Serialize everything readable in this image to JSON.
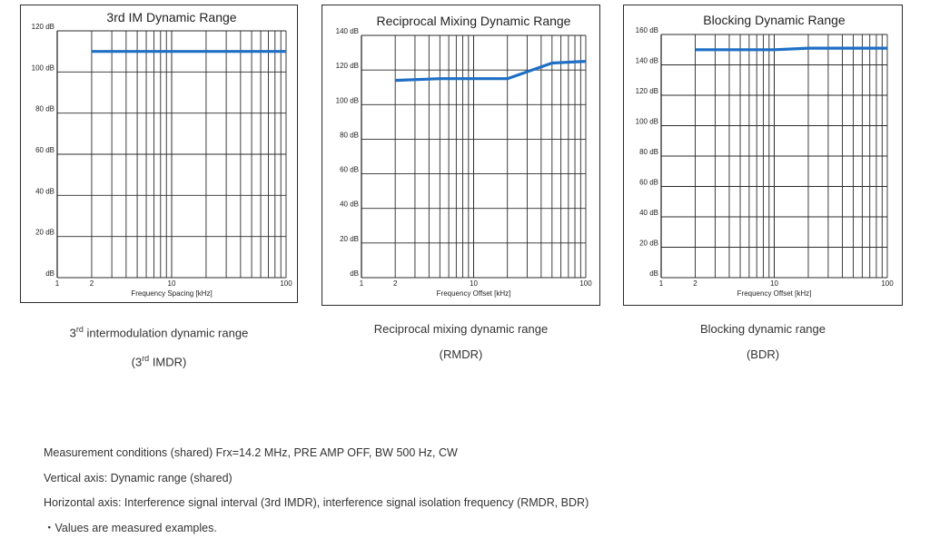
{
  "chart_data": [
    {
      "type": "line",
      "title": "3rd IM Dynamic Range",
      "xlabel": "Frequency Spacing [kHz]",
      "ylabel": "",
      "xscale": "log",
      "xlim": [
        1,
        100
      ],
      "ylim": [
        0,
        120
      ],
      "x_tick_labels": [
        "1",
        "2",
        "10",
        "100"
      ],
      "y_tick_labels": [
        "dB",
        "20 dB",
        "40 dB",
        "60 dB",
        "80 dB",
        "100 dB",
        "120 dB"
      ],
      "y_ticks": [
        0,
        20,
        40,
        60,
        80,
        100,
        120
      ],
      "grid": true,
      "series": [
        {
          "x": [
            2,
            100
          ],
          "values": [
            110,
            110
          ]
        }
      ],
      "line_color": "#1f6fc5"
    },
    {
      "type": "line",
      "title": "Reciprocal Mixing Dynamic Range",
      "xlabel": "Frequency Offset [kHz]",
      "ylabel": "",
      "xscale": "log",
      "xlim": [
        1,
        100
      ],
      "ylim": [
        0,
        140
      ],
      "x_tick_labels": [
        "1",
        "2",
        "10",
        "100"
      ],
      "y_tick_labels": [
        "dB",
        "20 dB",
        "40 dB",
        "60 dB",
        "80 dB",
        "100 dB",
        "120 dB",
        "140 dB"
      ],
      "y_ticks": [
        0,
        20,
        40,
        60,
        80,
        100,
        120,
        140
      ],
      "grid": true,
      "series": [
        {
          "x": [
            2,
            5,
            20,
            50,
            100
          ],
          "values": [
            114,
            115,
            115,
            124,
            125
          ]
        }
      ],
      "line_color": "#1f6fc5"
    },
    {
      "type": "line",
      "title": "Blocking Dynamic Range",
      "xlabel": "Frequency Offset [kHz]",
      "ylabel": "",
      "xscale": "log",
      "xlim": [
        1,
        100
      ],
      "ylim": [
        0,
        160
      ],
      "x_tick_labels": [
        "1",
        "2",
        "10",
        "100"
      ],
      "y_tick_labels": [
        "dB",
        "20 dB",
        "40 dB",
        "60 dB",
        "80 dB",
        "100 dB",
        "120 dB",
        "140 dB",
        "160 dB"
      ],
      "y_ticks": [
        0,
        20,
        40,
        60,
        80,
        100,
        120,
        140,
        160
      ],
      "grid": true,
      "series": [
        {
          "x": [
            2,
            10,
            20,
            100
          ],
          "values": [
            150,
            150,
            151,
            151
          ]
        }
      ],
      "line_color": "#1f6fc5"
    }
  ],
  "captions": [
    {
      "line1_pre": "3",
      "line1_sup": "rd",
      "line1_post": " intermodulation dynamic range",
      "line2_pre": "(3",
      "line2_sup": "rd",
      "line2_post": " IMDR)"
    },
    {
      "line1": "Reciprocal mixing dynamic range",
      "line2": "(RMDR)"
    },
    {
      "line1": "Blocking dynamic range",
      "line2": "(BDR)"
    }
  ],
  "notes": [
    "Measurement conditions (shared) Frx=14.2 MHz, PRE AMP OFF, BW 500 Hz, CW",
    "Vertical axis: Dynamic range (shared)",
    "Horizontal axis: Interference signal interval (3rd IMDR), interference signal isolation frequency (RMDR, BDR)",
    "・Values are measured examples."
  ]
}
